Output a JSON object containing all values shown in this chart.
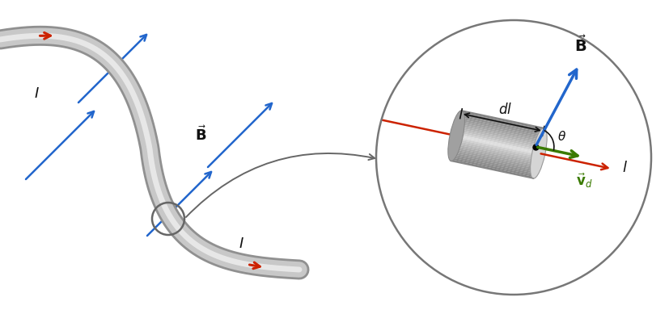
{
  "bg_color": "#ffffff",
  "wire_color": "#c8c8c8",
  "wire_edge_color": "#909090",
  "wire_highlight": "#efefef",
  "current_color": "#cc2200",
  "B_field_color": "#2266cc",
  "vd_color": "#3a7a00",
  "label_color": "#111111",
  "circle_color": "#666666",
  "arrow_color": "#666666",
  "B_label_left": "$\\vec{\\mathbf{B}}$",
  "I_label": "$I$",
  "vd_label": "$\\vec{\\mathbf{v}}_d$",
  "dl_label": "$dl$",
  "theta_label": "$\\theta$",
  "l_label": "$l$",
  "B_label_right": "$\\vec{\\mathbf{B}}$",
  "wire_lw": 14,
  "wire_lw_edge": 18,
  "wire_lw_hi": 5
}
